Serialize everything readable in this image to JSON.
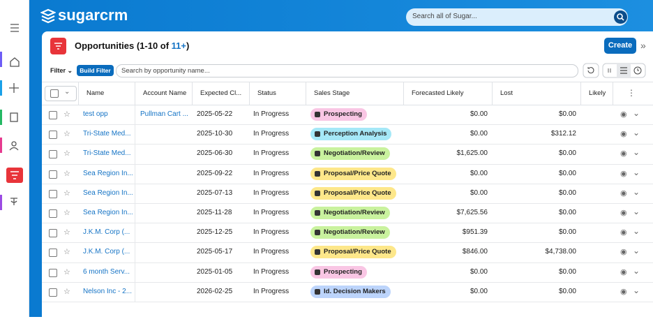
{
  "header": {
    "logo": "sugarcrm",
    "search_placeholder": "Search all of Sugar..."
  },
  "page": {
    "title": "Opportunities (1-10 of ",
    "count": "11+",
    "title_end": ")",
    "create": "Create"
  },
  "filter": {
    "label": "Filter",
    "build": "Build Filter",
    "search_placeholder": "Search by opportunity name..."
  },
  "table": {
    "columns": [
      "Name",
      "Account Name",
      "Expected Cl...",
      "Status",
      "Sales Stage",
      "Forecasted Likely",
      "Lost",
      "Likely"
    ],
    "rows": [
      {
        "name": "test opp",
        "account": "Pullman Cart ...",
        "expected_close": "2025-05-22",
        "status": "In Progress",
        "sales_stage": "Prospecting",
        "stage_color": "#f9c6e4",
        "forecasted_likely": "$0.00",
        "lost": "$0.00"
      },
      {
        "name": "Tri-State Med...",
        "account": "",
        "expected_close": "2025-10-30",
        "status": "In Progress",
        "sales_stage": "Perception Analysis",
        "stage_color": "#a5e8f7",
        "forecasted_likely": "$0.00",
        "lost": "$312.12"
      },
      {
        "name": "Tri-State Med...",
        "account": "",
        "expected_close": "2025-06-30",
        "status": "In Progress",
        "sales_stage": "Negotiation/Review",
        "stage_color": "#c9f29e",
        "forecasted_likely": "$1,625.00",
        "lost": "$0.00"
      },
      {
        "name": "Sea Region In...",
        "account": "",
        "expected_close": "2025-09-22",
        "status": "In Progress",
        "sales_stage": "Proposal/Price Quote",
        "stage_color": "#fde78a",
        "forecasted_likely": "$0.00",
        "lost": "$0.00"
      },
      {
        "name": "Sea Region In...",
        "account": "",
        "expected_close": "2025-07-13",
        "status": "In Progress",
        "sales_stage": "Proposal/Price Quote",
        "stage_color": "#fde78a",
        "forecasted_likely": "$0.00",
        "lost": "$0.00"
      },
      {
        "name": "Sea Region In...",
        "account": "",
        "expected_close": "2025-11-28",
        "status": "In Progress",
        "sales_stage": "Negotiation/Review",
        "stage_color": "#c9f29e",
        "forecasted_likely": "$7,625.56",
        "lost": "$0.00"
      },
      {
        "name": "J.K.M. Corp (...",
        "account": "",
        "expected_close": "2025-12-25",
        "status": "In Progress",
        "sales_stage": "Negotiation/Review",
        "stage_color": "#c9f29e",
        "forecasted_likely": "$951.39",
        "lost": "$0.00"
      },
      {
        "name": "J.K.M. Corp (...",
        "account": "",
        "expected_close": "2025-05-17",
        "status": "In Progress",
        "sales_stage": "Proposal/Price Quote",
        "stage_color": "#fde78a",
        "forecasted_likely": "$846.00",
        "lost": "$4,738.00"
      },
      {
        "name": "6 month Serv...",
        "account": "",
        "expected_close": "2025-01-05",
        "status": "In Progress",
        "sales_stage": "Prospecting",
        "stage_color": "#f9c6e4",
        "forecasted_likely": "$0.00",
        "lost": "$0.00"
      },
      {
        "name": "Nelson Inc - 2...",
        "account": "",
        "expected_close": "2026-02-25",
        "status": "In Progress",
        "sales_stage": "Id. Decision Makers",
        "stage_color": "#bcd4fb",
        "forecasted_likely": "$0.00",
        "lost": "$0.00"
      }
    ]
  }
}
